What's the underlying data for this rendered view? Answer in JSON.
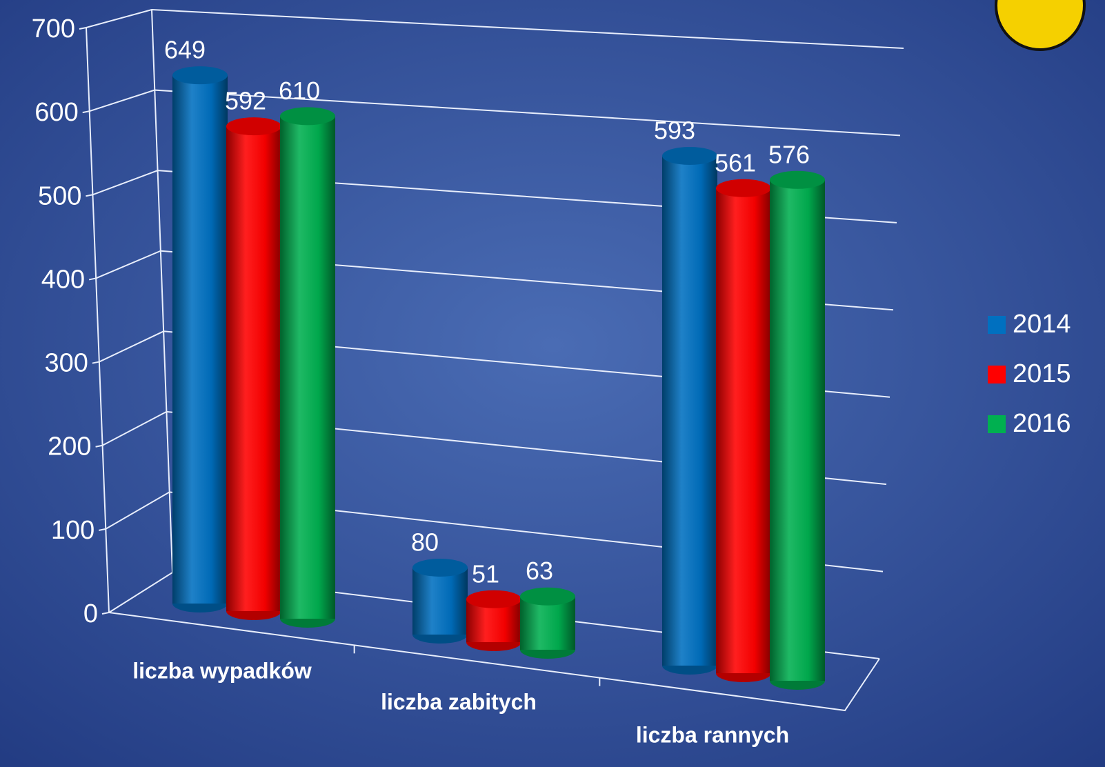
{
  "chart_data": {
    "type": "bar3d",
    "categories": [
      "liczba wypadków",
      "liczba zabitych",
      "liczba rannych"
    ],
    "series": [
      {
        "name": "2014",
        "color": "#0070c0",
        "values": [
          649,
          80,
          593
        ]
      },
      {
        "name": "2015",
        "color": "#ff0000",
        "values": [
          592,
          51,
          561
        ]
      },
      {
        "name": "2016",
        "color": "#00b050",
        "values": [
          610,
          63,
          576
        ]
      }
    ],
    "ylim": [
      0,
      700
    ],
    "yticks": [
      0,
      100,
      200,
      300,
      400,
      500,
      600,
      700
    ],
    "grid": true,
    "legend": "right"
  }
}
